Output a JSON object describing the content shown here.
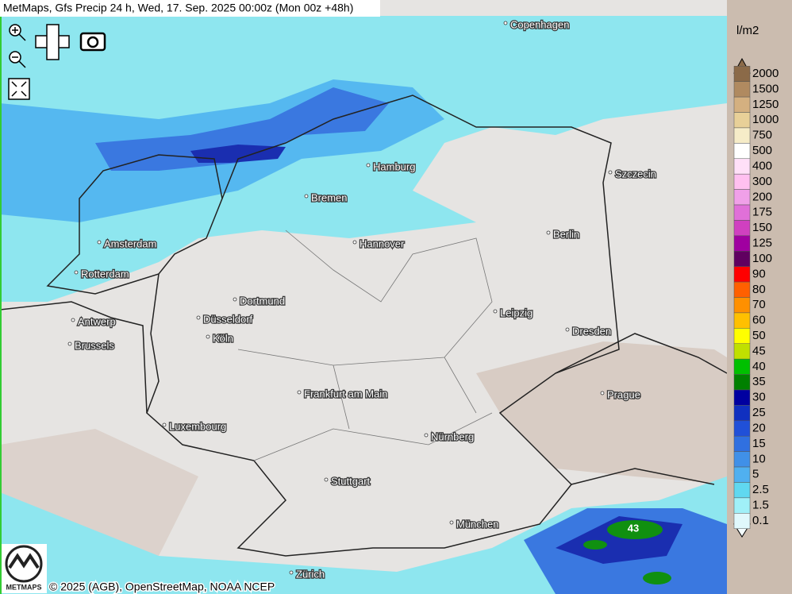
{
  "header": {
    "title": "MetMaps, Gfs Precip 24 h, Wed, 17. Sep. 2025 00:00z (Mon 00z +48h)"
  },
  "legend": {
    "unit": "l/m2",
    "entries": [
      {
        "value": 2000,
        "color": "#8b6a48"
      },
      {
        "value": 1500,
        "color": "#b08a60"
      },
      {
        "value": 1250,
        "color": "#d4b080"
      },
      {
        "value": 1000,
        "color": "#e8d098"
      },
      {
        "value": 750,
        "color": "#f6ecc8"
      },
      {
        "value": 500,
        "color": "#ffffff"
      },
      {
        "value": 400,
        "color": "#ffe0f8"
      },
      {
        "value": 300,
        "color": "#ffc0f0"
      },
      {
        "value": 200,
        "color": "#f0a0e8"
      },
      {
        "value": 175,
        "color": "#e070d8"
      },
      {
        "value": 150,
        "color": "#d040c0"
      },
      {
        "value": 125,
        "color": "#a000a0"
      },
      {
        "value": 100,
        "color": "#600060"
      },
      {
        "value": 90,
        "color": "#ff0000"
      },
      {
        "value": 80,
        "color": "#ff6000"
      },
      {
        "value": 70,
        "color": "#ff9000"
      },
      {
        "value": 60,
        "color": "#ffc000"
      },
      {
        "value": 50,
        "color": "#ffff00"
      },
      {
        "value": 45,
        "color": "#c0e000"
      },
      {
        "value": 40,
        "color": "#00c000"
      },
      {
        "value": 35,
        "color": "#008000"
      },
      {
        "value": 30,
        "color": "#0000a0"
      },
      {
        "value": 25,
        "color": "#1030c0"
      },
      {
        "value": 20,
        "color": "#2050d8"
      },
      {
        "value": 15,
        "color": "#3070e0"
      },
      {
        "value": 10,
        "color": "#4090e8"
      },
      {
        "value": 5,
        "color": "#50b0f0"
      },
      {
        "value": 2.5,
        "color": "#60d8f0"
      },
      {
        "value": 1.5,
        "color": "#a0f0f8"
      },
      {
        "value": 0.1,
        "color": "#e0f8fc"
      }
    ]
  },
  "cities": [
    "Copenhagen",
    "Hamburg",
    "Bremen",
    "Szczecin",
    "Amsterdam",
    "Hannover",
    "Berlin",
    "Rotterdam",
    "Dortmund",
    "Antwerp",
    "Düsseldorf",
    "Leipzig",
    "Dresden",
    "Brussels",
    "Köln",
    "Frankfurt am Main",
    "Prague",
    "Luxembourg",
    "Nürnberg",
    "Stuttgart",
    "München",
    "Zürich"
  ],
  "annotations": [
    "43"
  ],
  "logo": "METMAPS",
  "footer": {
    "copyright": "© 2025 (AGB), OpenStreetMap, NOAA NCEP"
  }
}
